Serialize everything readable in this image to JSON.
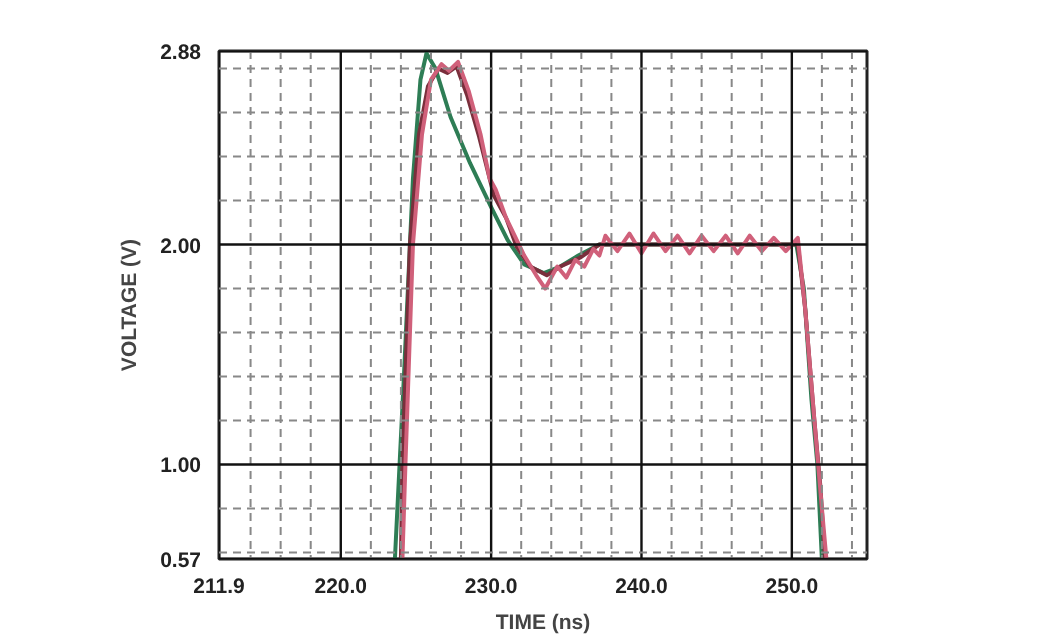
{
  "chart_data": {
    "type": "line",
    "xlabel": "TIME (ns)",
    "ylabel": "VOLTAGE (V)",
    "xlim": [
      211.9,
      255
    ],
    "ylim": [
      0.57,
      2.88
    ],
    "xticks": [
      211.9,
      {
        "value": 214,
        "label": null
      },
      {
        "value": 216,
        "label": null
      },
      {
        "value": 218,
        "label": null
      },
      {
        "value": 220,
        "label": "220.0"
      },
      {
        "value": 222,
        "label": null
      },
      {
        "value": 224,
        "label": null
      },
      {
        "value": 226,
        "label": null
      },
      {
        "value": 228,
        "label": null
      },
      {
        "value": 230,
        "label": "230.0"
      },
      {
        "value": 232,
        "label": null
      },
      {
        "value": 234,
        "label": null
      },
      {
        "value": 236,
        "label": null
      },
      {
        "value": 238,
        "label": null
      },
      {
        "value": 240,
        "label": "240.0"
      },
      {
        "value": 242,
        "label": null
      },
      {
        "value": 244,
        "label": null
      },
      {
        "value": 246,
        "label": null
      },
      {
        "value": 248,
        "label": null
      },
      {
        "value": 250,
        "label": "250.0"
      },
      {
        "value": 252,
        "label": null
      },
      {
        "value": 254,
        "label": null
      }
    ],
    "yticks": [
      0.57,
      {
        "value": 0.6,
        "label": null
      },
      {
        "value": 0.8,
        "label": null
      },
      {
        "value": 1,
        "label": "1.00"
      },
      {
        "value": 1.2,
        "label": null
      },
      {
        "value": 1.4,
        "label": null
      },
      {
        "value": 1.6,
        "label": null
      },
      {
        "value": 1.8,
        "label": null
      },
      {
        "value": 2,
        "label": "2.00"
      },
      {
        "value": 2.2,
        "label": null
      },
      {
        "value": 2.4,
        "label": null
      },
      {
        "value": 2.6,
        "label": null
      },
      {
        "value": 2.8,
        "label": null
      },
      2.88
    ],
    "grid": true,
    "line_style": "solid",
    "marker": "none",
    "series": [
      {
        "color": "#2e7d55",
        "x": [
          223.6,
          224.2,
          224.8,
          225.3,
          225.7,
          226.3,
          227.3,
          228.6,
          230.0,
          231.1,
          232.2,
          233.5,
          234.6,
          235.8,
          237.2,
          240,
          245,
          250.3,
          250.8,
          251.3,
          251.7,
          252.0
        ],
        "values": [
          0.57,
          1.4,
          2.3,
          2.75,
          2.87,
          2.8,
          2.58,
          2.37,
          2.17,
          2.02,
          1.91,
          1.87,
          1.9,
          1.95,
          2.0,
          2.0,
          2.0,
          2.0,
          1.8,
          1.3,
          1.0,
          0.57
        ]
      },
      {
        "color": "#7a2f3c",
        "x": [
          224.0,
          224.1,
          224.6,
          225.2,
          225.8,
          226.5,
          227.1,
          227.7,
          228.4,
          229.2,
          230.2,
          231.0,
          231.7,
          232.6,
          233.7,
          234.6,
          235.9,
          237.2,
          240,
          245,
          250.4,
          250.9,
          251.5,
          251.9,
          252.2
        ],
        "values": [
          0.57,
          1.0,
          2.0,
          2.5,
          2.72,
          2.8,
          2.78,
          2.81,
          2.68,
          2.49,
          2.22,
          2.12,
          1.99,
          1.9,
          1.86,
          1.9,
          1.94,
          2.0,
          2.0,
          2.0,
          2.0,
          1.7,
          1.2,
          0.9,
          0.57
        ]
      },
      {
        "color": "#d0607a",
        "x": [
          224.1,
          224.3,
          224.8,
          225.4,
          226.0,
          226.7,
          227.2,
          227.8,
          228.5,
          229.3,
          229.9,
          230.3,
          231.0,
          231.5,
          232.2,
          233.0,
          233.6,
          234.4,
          235.0,
          235.6,
          236.2,
          236.8,
          237.2,
          237.6,
          238.4,
          239.2,
          240.0,
          240.8,
          241.6,
          242.4,
          243.2,
          244.0,
          244.8,
          245.6,
          246.4,
          247.2,
          248.0,
          248.8,
          249.6,
          250.4,
          250.9,
          251.5,
          252.0,
          252.3
        ],
        "values": [
          0.57,
          1.0,
          2.0,
          2.5,
          2.75,
          2.82,
          2.79,
          2.83,
          2.7,
          2.5,
          2.3,
          2.25,
          2.12,
          2.05,
          1.95,
          1.86,
          1.8,
          1.9,
          1.85,
          1.93,
          1.9,
          1.98,
          1.95,
          2.04,
          1.97,
          2.05,
          1.96,
          2.05,
          1.97,
          2.04,
          1.96,
          2.04,
          1.97,
          2.04,
          1.96,
          2.04,
          1.97,
          2.03,
          1.97,
          2.03,
          1.7,
          1.2,
          0.8,
          0.57
        ]
      }
    ]
  }
}
